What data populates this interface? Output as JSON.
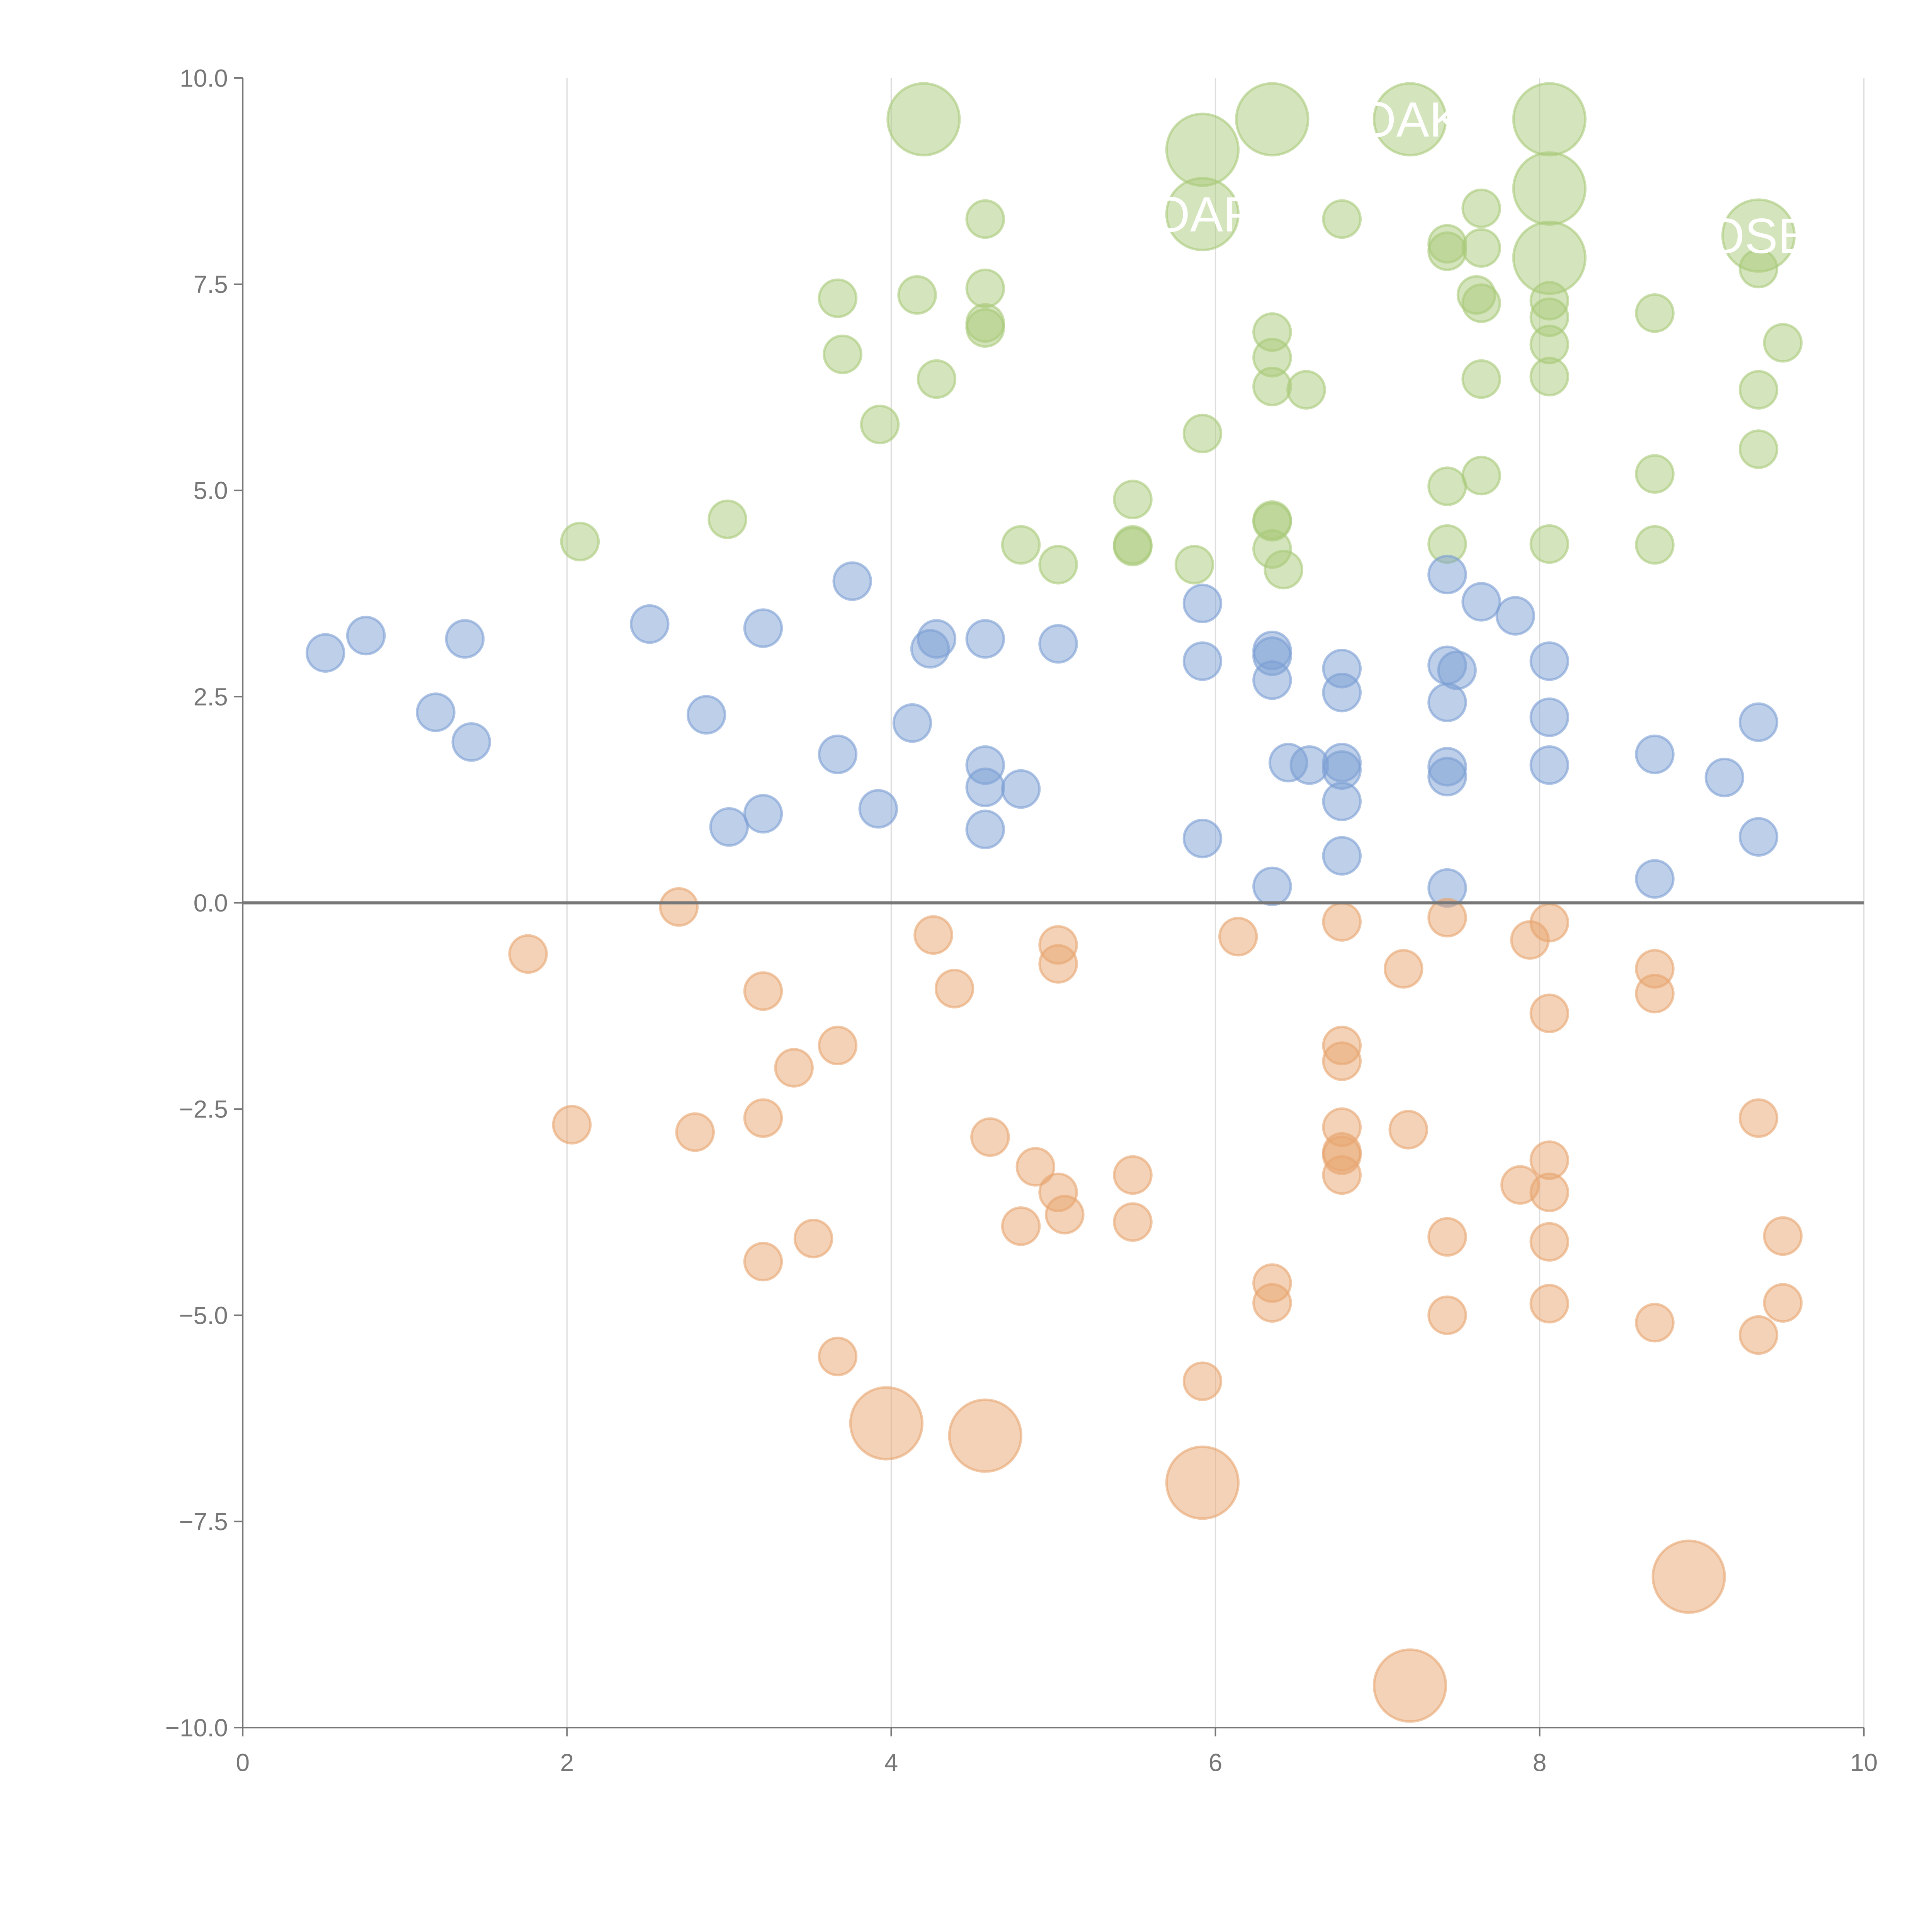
{
  "chart_data": {
    "type": "scatter",
    "title": "",
    "xlabel": "",
    "ylabel": "",
    "xlim": [
      0,
      10
    ],
    "ylim": [
      -10,
      10
    ],
    "x_ticks": [
      "0",
      "2",
      "4",
      "6",
      "8",
      "10"
    ],
    "y_ticks": [
      "10.0",
      "7.5",
      "5.0",
      "2.5",
      "0.0",
      "−2.5",
      "−5.0",
      "−7.5",
      "−10.0"
    ],
    "x_tick_values": [
      0,
      2,
      4,
      6,
      8,
      10
    ],
    "y_tick_values": [
      10,
      7.5,
      5,
      2.5,
      0,
      -2.5,
      -5,
      -7.5,
      -10
    ],
    "grid": "vertical",
    "zero_line": true,
    "annotations": [
      {
        "text": "OAK",
        "x": 7.2,
        "y": 9.5
      },
      {
        "text": "OAF",
        "x": 5.92,
        "y": 8.35
      },
      {
        "text": "OSE",
        "x": 9.35,
        "y": 8.09
      }
    ],
    "series": [
      {
        "name": "green",
        "color": "#a9c97a",
        "large": [
          [
            4.2,
            9.5
          ],
          [
            6.35,
            9.5
          ],
          [
            5.92,
            9.13
          ],
          [
            5.92,
            8.35
          ],
          [
            7.2,
            9.5
          ],
          [
            8.06,
            9.5
          ],
          [
            8.06,
            8.66
          ],
          [
            8.06,
            7.82
          ],
          [
            9.35,
            8.09
          ]
        ],
        "points": [
          [
            4.58,
            8.29
          ],
          [
            6.78,
            8.29
          ],
          [
            7.64,
            8.42
          ],
          [
            7.43,
            7.99
          ],
          [
            7.43,
            7.9
          ],
          [
            7.64,
            7.94
          ],
          [
            3.67,
            7.33
          ],
          [
            4.16,
            7.37
          ],
          [
            4.58,
            7.45
          ],
          [
            4.58,
            7.03
          ],
          [
            4.58,
            6.97
          ],
          [
            3.7,
            6.65
          ],
          [
            4.28,
            6.35
          ],
          [
            7.61,
            7.37
          ],
          [
            7.64,
            7.27
          ],
          [
            8.06,
            7.3
          ],
          [
            8.06,
            7.1
          ],
          [
            8.06,
            6.77
          ],
          [
            8.06,
            6.38
          ],
          [
            7.64,
            6.35
          ],
          [
            9.35,
            7.69
          ],
          [
            8.71,
            7.15
          ],
          [
            9.5,
            6.79
          ],
          [
            9.35,
            6.22
          ],
          [
            9.35,
            5.5
          ],
          [
            6.35,
            6.92
          ],
          [
            6.35,
            6.61
          ],
          [
            6.35,
            6.26
          ],
          [
            6.56,
            6.22
          ],
          [
            5.92,
            5.69
          ],
          [
            3.93,
            5.8
          ],
          [
            7.64,
            5.18
          ],
          [
            7.43,
            5.05
          ],
          [
            8.71,
            5.2
          ],
          [
            2.99,
            4.65
          ],
          [
            2.08,
            4.38
          ],
          [
            5.49,
            4.89
          ],
          [
            5.49,
            4.34
          ],
          [
            5.49,
            4.32
          ],
          [
            4.8,
            4.34
          ],
          [
            5.03,
            4.1
          ],
          [
            5.87,
            4.1
          ],
          [
            6.35,
            4.64
          ],
          [
            6.35,
            4.62
          ],
          [
            6.35,
            4.29
          ],
          [
            6.42,
            4.04
          ],
          [
            7.43,
            4.35
          ],
          [
            8.06,
            4.35
          ],
          [
            8.71,
            4.34
          ]
        ]
      },
      {
        "name": "blue",
        "color": "#7b9fd4",
        "large": [],
        "points": [
          [
            0.51,
            3.03
          ],
          [
            0.76,
            3.24
          ],
          [
            1.37,
            3.2
          ],
          [
            1.19,
            2.31
          ],
          [
            1.41,
            1.95
          ],
          [
            2.51,
            3.38
          ],
          [
            3.21,
            3.33
          ],
          [
            2.86,
            2.28
          ],
          [
            3.76,
            3.9
          ],
          [
            4.28,
            3.2
          ],
          [
            4.24,
            3.08
          ],
          [
            4.58,
            3.2
          ],
          [
            5.03,
            3.14
          ],
          [
            4.13,
            2.18
          ],
          [
            3.67,
            1.8
          ],
          [
            3.92,
            1.14
          ],
          [
            3.0,
            0.92
          ],
          [
            3.21,
            1.08
          ],
          [
            4.58,
            1.67
          ],
          [
            4.58,
            1.4
          ],
          [
            4.8,
            1.38
          ],
          [
            4.58,
            0.89
          ],
          [
            5.92,
            3.63
          ],
          [
            5.92,
            2.93
          ],
          [
            6.35,
            3.06
          ],
          [
            6.35,
            2.99
          ],
          [
            6.35,
            2.7
          ],
          [
            6.78,
            2.84
          ],
          [
            6.78,
            2.55
          ],
          [
            6.45,
            1.7
          ],
          [
            6.58,
            1.67
          ],
          [
            6.78,
            1.7
          ],
          [
            6.78,
            1.61
          ],
          [
            6.78,
            1.23
          ],
          [
            5.92,
            0.78
          ],
          [
            6.78,
            0.57
          ],
          [
            6.35,
            0.2
          ],
          [
            7.43,
            3.98
          ],
          [
            7.64,
            3.65
          ],
          [
            7.85,
            3.48
          ],
          [
            7.43,
            2.88
          ],
          [
            7.49,
            2.82
          ],
          [
            7.43,
            2.43
          ],
          [
            8.06,
            2.93
          ],
          [
            8.06,
            2.25
          ],
          [
            7.43,
            1.65
          ],
          [
            7.43,
            1.53
          ],
          [
            8.06,
            1.67
          ],
          [
            7.43,
            0.18
          ],
          [
            8.71,
            1.8
          ],
          [
            9.14,
            1.52
          ],
          [
            9.35,
            2.19
          ],
          [
            9.35,
            0.8
          ],
          [
            8.71,
            0.29
          ]
        ]
      },
      {
        "name": "orange",
        "color": "#e8a56f",
        "large": [
          [
            3.97,
            -6.31
          ],
          [
            4.58,
            -6.46
          ],
          [
            5.92,
            -7.03
          ],
          [
            8.92,
            -8.17
          ],
          [
            7.2,
            -9.49
          ]
        ],
        "points": [
          [
            2.69,
            -0.05
          ],
          [
            1.76,
            -0.62
          ],
          [
            3.21,
            -1.07
          ],
          [
            4.26,
            -0.39
          ],
          [
            4.39,
            -1.04
          ],
          [
            5.03,
            -0.51
          ],
          [
            5.03,
            -0.74
          ],
          [
            3.4,
            -2.0
          ],
          [
            3.67,
            -1.73
          ],
          [
            2.03,
            -2.69
          ],
          [
            2.79,
            -2.78
          ],
          [
            3.21,
            -2.61
          ],
          [
            4.61,
            -2.84
          ],
          [
            4.89,
            -3.2
          ],
          [
            5.03,
            -3.51
          ],
          [
            5.07,
            -3.78
          ],
          [
            4.8,
            -3.92
          ],
          [
            5.49,
            -3.3
          ],
          [
            5.49,
            -3.87
          ],
          [
            3.52,
            -4.07
          ],
          [
            3.21,
            -4.35
          ],
          [
            3.67,
            -5.5
          ],
          [
            6.14,
            -0.41
          ],
          [
            6.78,
            -0.23
          ],
          [
            7.16,
            -0.8
          ],
          [
            7.43,
            -0.18
          ],
          [
            7.94,
            -0.45
          ],
          [
            8.06,
            -0.24
          ],
          [
            8.06,
            -1.34
          ],
          [
            8.71,
            -0.8
          ],
          [
            8.71,
            -1.1
          ],
          [
            6.78,
            -1.73
          ],
          [
            6.78,
            -1.92
          ],
          [
            6.78,
            -2.72
          ],
          [
            6.78,
            -3.02
          ],
          [
            6.78,
            -3.06
          ],
          [
            6.78,
            -3.3
          ],
          [
            7.19,
            -2.75
          ],
          [
            7.88,
            -3.42
          ],
          [
            8.06,
            -3.12
          ],
          [
            8.06,
            -3.51
          ],
          [
            8.06,
            -4.11
          ],
          [
            7.43,
            -4.05
          ],
          [
            8.06,
            -4.86
          ],
          [
            7.43,
            -5.0
          ],
          [
            6.35,
            -4.61
          ],
          [
            6.35,
            -4.85
          ],
          [
            5.92,
            -5.8
          ],
          [
            8.71,
            -5.09
          ],
          [
            9.35,
            -2.61
          ],
          [
            9.5,
            -4.04
          ],
          [
            9.5,
            -4.85
          ],
          [
            9.35,
            -5.24
          ]
        ]
      }
    ]
  }
}
